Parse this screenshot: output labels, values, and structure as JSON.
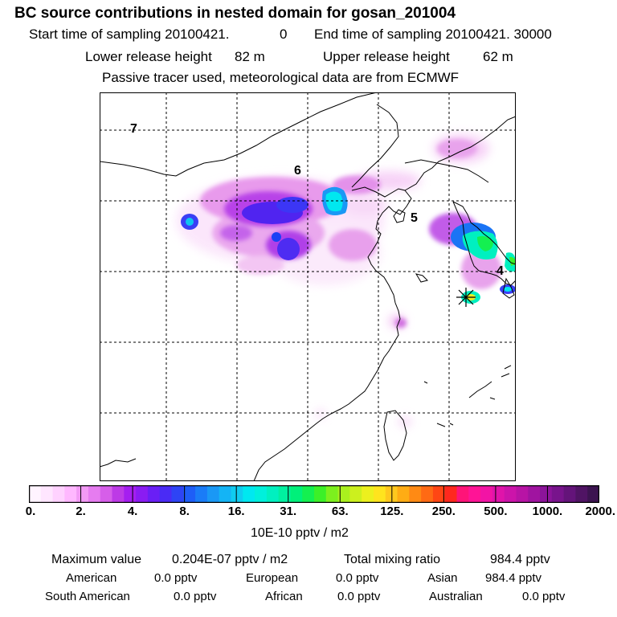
{
  "header": {
    "title": "BC  source contributions in nested domain for gosan_201004",
    "start_label": "Start time of sampling 20100421.",
    "start_value": "0",
    "end_label": "End time of sampling 20100421. 30000",
    "lower_label": "Lower release height",
    "lower_value": "82 m",
    "upper_label": "Upper release height",
    "upper_value": "62 m",
    "tracer": "Passive tracer used, meteorological data are from ECMWF"
  },
  "map": {
    "region_labels": [
      "7",
      "6",
      "5",
      "4"
    ],
    "colors": {
      "coast": "#000000",
      "grid": "#000000",
      "marker": "#000000"
    }
  },
  "colorbar": {
    "ticks": [
      "0.",
      "2.",
      "4.",
      "8.",
      "16.",
      "31.",
      "63.",
      "125.",
      "250.",
      "500.",
      "1000.",
      "2000."
    ],
    "unit": "10E-10 pptv / m2",
    "colors": [
      "#fff4ff",
      "#ffe6ff",
      "#ffd2ff",
      "#ffb8ff",
      "#f29af5",
      "#e67cf0",
      "#d65ee9",
      "#bd3ae6",
      "#a51ef0",
      "#8a1cf2",
      "#6a1ff5",
      "#4a2bf5",
      "#2e44f5",
      "#1e5ef7",
      "#1a7cf7",
      "#1a98f5",
      "#14b4f5",
      "#10ccf0",
      "#00e8f0",
      "#00f0dc",
      "#00f0c0",
      "#00f0a0",
      "#00f07a",
      "#14f050",
      "#3cf028",
      "#7cf01e",
      "#aaf01e",
      "#ccf01e",
      "#ecf01e",
      "#ffe41e",
      "#ffc81e",
      "#ffac14",
      "#ff8a14",
      "#ff6a14",
      "#ff4614",
      "#ff281e",
      "#ff1478",
      "#ff1496",
      "#f214a5",
      "#e014aa",
      "#cc14aa",
      "#b814a5",
      "#a014a0",
      "#8c149a",
      "#78148c",
      "#64147a",
      "#501464",
      "#3c1450"
    ]
  },
  "summary": {
    "max_label": "Maximum value",
    "max_value": "0.204E-07 pptv / m2",
    "total_label": "Total mixing ratio",
    "total_value": "984.4 pptv",
    "contributions": [
      {
        "name": "American",
        "value": "0.0 pptv"
      },
      {
        "name": "European",
        "value": "0.0 pptv"
      },
      {
        "name": "Asian",
        "value": "984.4 pptv"
      },
      {
        "name": "South American",
        "value": "0.0 pptv"
      },
      {
        "name": "African",
        "value": "0.0 pptv"
      },
      {
        "name": "Australian",
        "value": "0.0 pptv"
      }
    ]
  }
}
